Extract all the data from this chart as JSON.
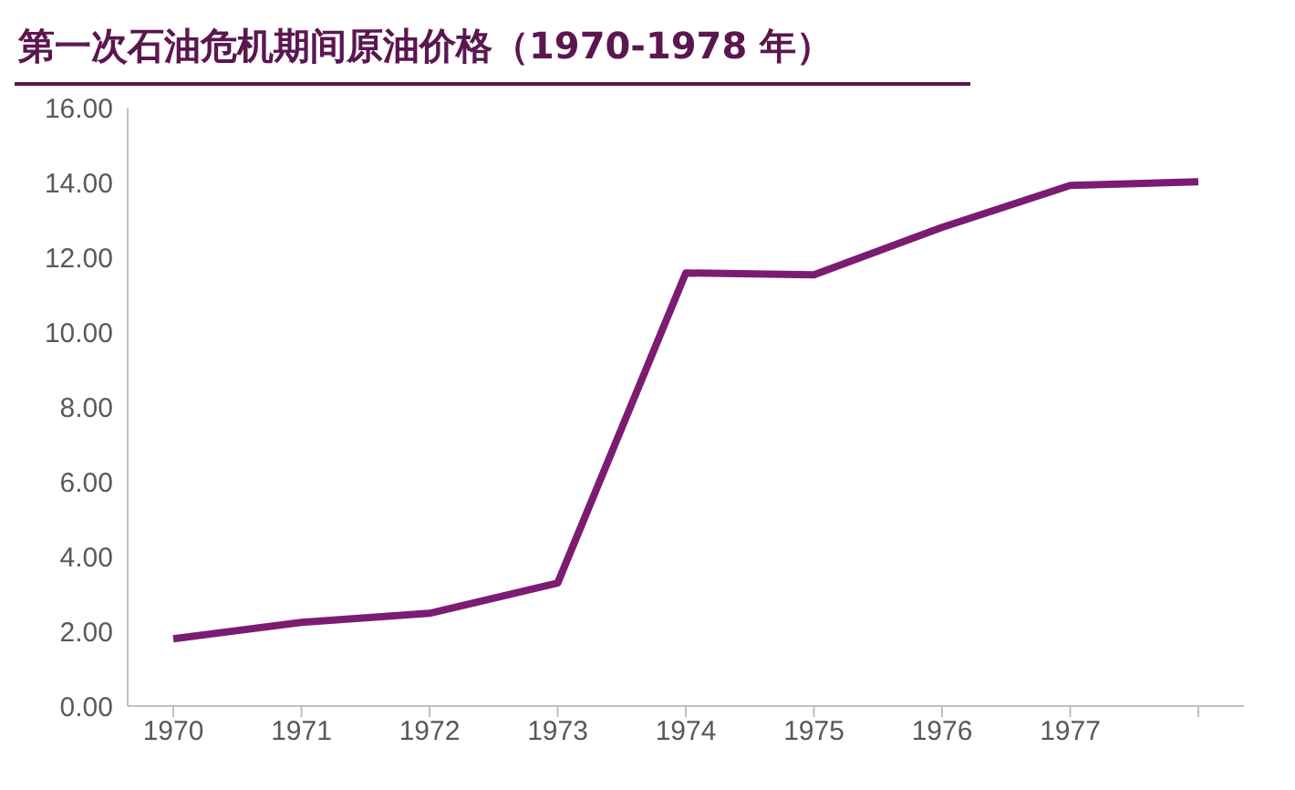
{
  "chart_data": {
    "type": "line",
    "title": "第一次石油危机期间原油价格（1970-1978 年）",
    "categories": [
      "1970",
      "1971",
      "1972",
      "1973",
      "1974",
      "1975",
      "1976",
      "1977",
      null
    ],
    "series": [
      {
        "color": "#7b1c72",
        "values": [
          1.8,
          2.24,
          2.48,
          3.29,
          11.58,
          11.53,
          12.8,
          13.92,
          14.02
        ]
      }
    ],
    "ylim": [
      0,
      16
    ],
    "yticks": [
      {
        "value": 0,
        "label": "0.00"
      },
      {
        "value": 2,
        "label": "2.00"
      },
      {
        "value": 4,
        "label": "4.00"
      },
      {
        "value": 6,
        "label": "6.00"
      },
      {
        "value": 8,
        "label": "8.00"
      },
      {
        "value": 10,
        "label": "10.00"
      },
      {
        "value": 12,
        "label": "12.00"
      },
      {
        "value": 14,
        "label": "14.00"
      },
      {
        "value": 16,
        "label": "16.00"
      }
    ],
    "grid": false,
    "legend": false,
    "marker": "none",
    "line_style": "solid"
  }
}
